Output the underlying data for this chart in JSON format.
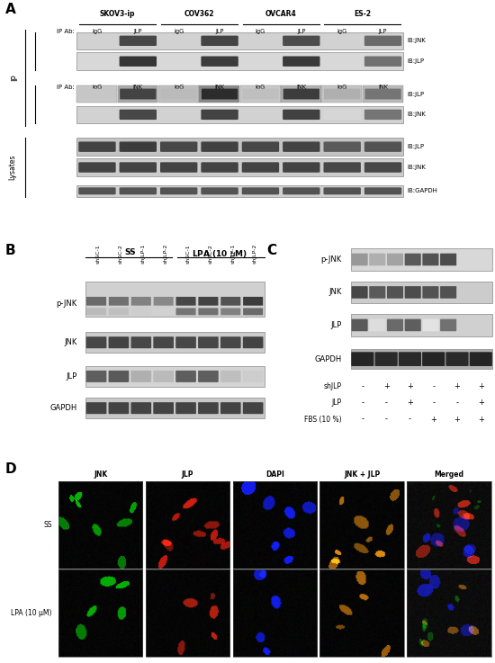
{
  "panel_A": {
    "label": "A",
    "cell_lines": [
      "SKOV3-ip",
      "COV362",
      "OVCAR4",
      "ES-2"
    ],
    "ip_ab_row1": [
      "IgG",
      "JLP"
    ],
    "ip_ab_row2": [
      "IgG",
      "JNK"
    ],
    "ib_labels_ip_top": [
      "IB:JNK",
      "IB:JLP"
    ],
    "ib_labels_ip_bottom": [
      "IB:JLP",
      "IB:JNK"
    ],
    "ib_labels_lysates": [
      "IB:JLP",
      "IB:JNK",
      "IB:GAPDH"
    ],
    "section_labels": [
      "IP",
      "Lysates"
    ]
  },
  "panel_B": {
    "label": "B",
    "ss_cols": [
      "shSC-1",
      "shSC-2",
      "shJLP-1",
      "shJLP-2"
    ],
    "lpa_cols": [
      "shSC-1",
      "shSC-2",
      "shJLP-1",
      "shJLP-2"
    ],
    "ss_label": "SS",
    "lpa_label": "LPA (10 μM)",
    "row_labels": [
      "p-JNK",
      "JNK",
      "JLP",
      "GAPDH"
    ]
  },
  "panel_C": {
    "label": "C",
    "row_labels": [
      "p-JNK",
      "JNK",
      "JLP",
      "GAPDH"
    ],
    "conditions": [
      "shJLP",
      "JLP",
      "FBS (10 %)"
    ],
    "condition_values": [
      [
        "-",
        "+",
        "+",
        "-",
        "+",
        "+"
      ],
      [
        "-",
        "-",
        "+",
        "-",
        "-",
        "+"
      ],
      [
        "-",
        "-",
        "-",
        "+",
        "+",
        "+"
      ]
    ]
  },
  "panel_D": {
    "label": "D",
    "col_labels": [
      "JNK",
      "JLP",
      "DAPI",
      "JNK + JLP",
      "Merged"
    ],
    "row_labels": [
      "SS",
      "LPA (10 μM)"
    ]
  },
  "bg_color": "#ffffff"
}
